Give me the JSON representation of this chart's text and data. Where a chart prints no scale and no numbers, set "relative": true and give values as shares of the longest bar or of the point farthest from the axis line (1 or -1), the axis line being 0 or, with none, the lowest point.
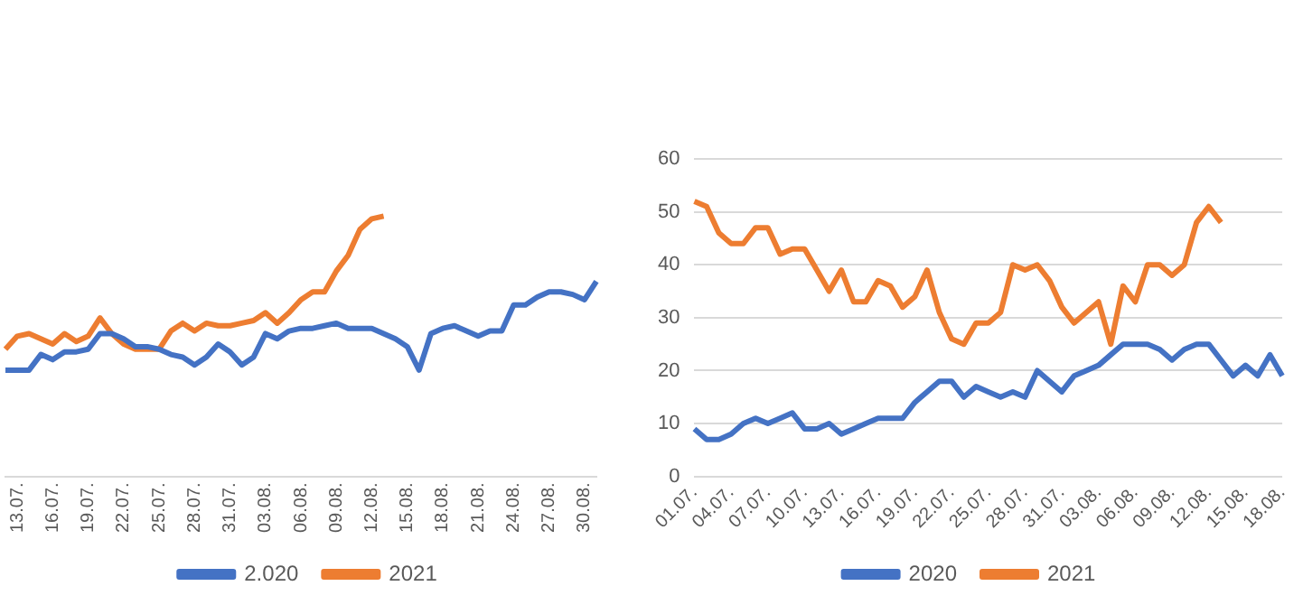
{
  "chart_data": [
    {
      "type": "line",
      "relative": true,
      "legend": "bottom",
      "grid": false,
      "marker": "none",
      "categories": [
        null,
        "13.07.",
        null,
        null,
        "16.07.",
        null,
        null,
        "19.07.",
        null,
        null,
        "22.07.",
        null,
        null,
        "25.07.",
        null,
        null,
        "28.07.",
        null,
        null,
        "31.07.",
        null,
        null,
        "03.08.",
        null,
        null,
        "06.08.",
        null,
        null,
        "09.08.",
        null,
        null,
        "12.08.",
        null,
        null,
        "15.08.",
        null,
        null,
        "18.08.",
        null,
        null,
        "21.08.",
        null,
        null,
        "24.08.",
        null,
        null,
        "27.08.",
        null,
        null,
        "30.08.",
        null
      ],
      "series": [
        {
          "name": "2.020",
          "color": "#4472c4",
          "values": [
            0.41,
            0.41,
            0.41,
            0.47,
            0.45,
            0.48,
            0.48,
            0.49,
            0.55,
            0.55,
            0.53,
            0.5,
            0.5,
            0.49,
            0.47,
            0.46,
            0.43,
            0.46,
            0.51,
            0.48,
            0.43,
            0.46,
            0.55,
            0.53,
            0.56,
            0.57,
            0.57,
            0.58,
            0.59,
            0.57,
            0.57,
            0.57,
            0.55,
            0.53,
            0.5,
            0.41,
            0.55,
            0.57,
            0.58,
            0.56,
            0.54,
            0.56,
            0.56,
            0.66,
            0.66,
            0.69,
            0.71,
            0.71,
            0.7,
            0.68,
            0.75
          ]
        },
        {
          "name": "2021",
          "color": "#ed7d31",
          "values": [
            0.49,
            0.54,
            0.55,
            0.53,
            0.51,
            0.55,
            0.52,
            0.54,
            0.61,
            0.55,
            0.51,
            0.49,
            0.49,
            0.49,
            0.56,
            0.59,
            0.56,
            0.59,
            0.58,
            0.58,
            0.59,
            0.6,
            0.63,
            0.59,
            0.63,
            0.68,
            0.71,
            0.71,
            0.79,
            0.85,
            0.95,
            0.99,
            1,
            null,
            null,
            null,
            null,
            null,
            null,
            null,
            null,
            null,
            null,
            null,
            null,
            null,
            null,
            null,
            null,
            null,
            null
          ]
        }
      ]
    },
    {
      "type": "line",
      "legend": "bottom",
      "grid": "y",
      "marker": "none",
      "ylim": [
        0,
        60
      ],
      "yticks": [
        0,
        10,
        20,
        30,
        40,
        50,
        60
      ],
      "categories": [
        "01.07.",
        null,
        null,
        "04.07.",
        null,
        null,
        "07.07.",
        null,
        null,
        "10.07.",
        null,
        null,
        "13.07.",
        null,
        null,
        "16.07.",
        null,
        null,
        "19.07.",
        null,
        null,
        "22.07.",
        null,
        null,
        "25.07.",
        null,
        null,
        "28.07.",
        null,
        null,
        "31.07.",
        null,
        null,
        "03.08.",
        null,
        null,
        "06.08.",
        null,
        null,
        "09.08.",
        null,
        null,
        "12.08.",
        null,
        null,
        "15.08.",
        null,
        null,
        "18.08."
      ],
      "series": [
        {
          "name": "2020",
          "color": "#4472c4",
          "values": [
            9,
            7,
            7,
            8,
            10,
            11,
            10,
            11,
            12,
            9,
            9,
            10,
            8,
            9,
            10,
            11,
            11,
            11,
            14,
            16,
            18,
            18,
            15,
            17,
            16,
            15,
            16,
            15,
            20,
            18,
            16,
            19,
            20,
            21,
            23,
            25,
            25,
            25,
            24,
            22,
            24,
            25,
            25,
            22,
            19,
            21,
            19,
            23,
            19
          ]
        },
        {
          "name": "2021",
          "color": "#ed7d31",
          "values": [
            52,
            51,
            46,
            44,
            44,
            47,
            47,
            42,
            43,
            43,
            39,
            35,
            39,
            33,
            33,
            37,
            36,
            32,
            34,
            39,
            31,
            26,
            25,
            29,
            29,
            31,
            40,
            39,
            40,
            37,
            32,
            29,
            31,
            33,
            25,
            36,
            33,
            40,
            40,
            38,
            40,
            48,
            51,
            48,
            null,
            null,
            null,
            null,
            null
          ]
        }
      ]
    }
  ]
}
